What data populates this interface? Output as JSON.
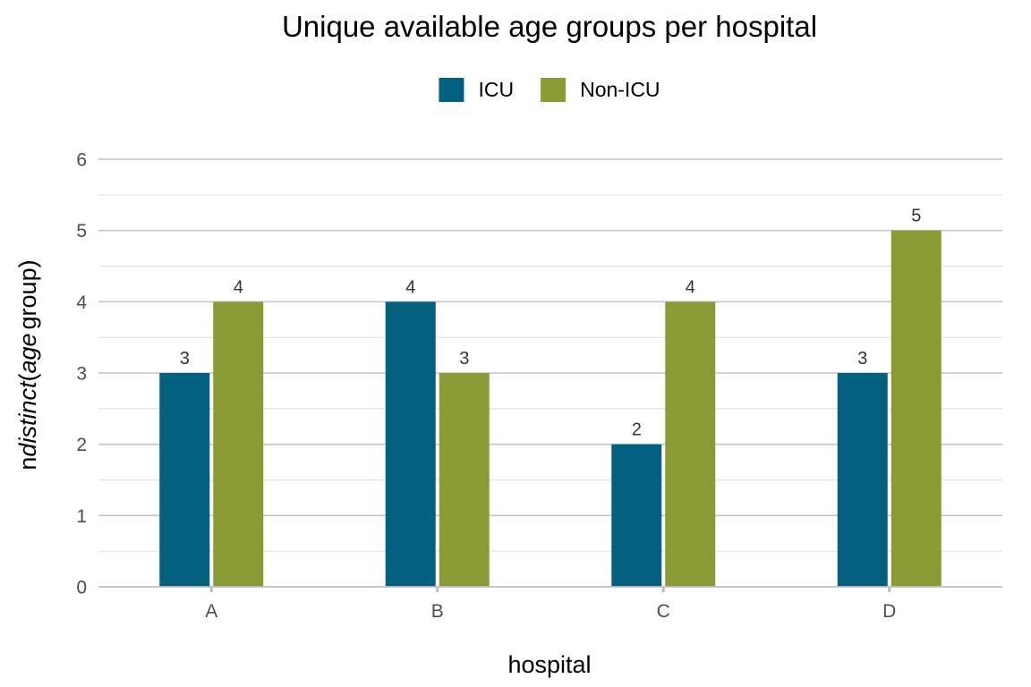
{
  "chart_data": {
    "type": "bar",
    "title": "Unique available age groups per hospital",
    "xlabel": "hospital",
    "ylabel": {
      "prefix": "n",
      "func": "distinct",
      "open": "(",
      "var": "age",
      "rest": "group",
      "close": ")"
    },
    "categories": [
      "A",
      "B",
      "C",
      "D"
    ],
    "series": [
      {
        "name": "ICU",
        "color": "#03607e",
        "values": [
          3,
          4,
          2,
          3
        ]
      },
      {
        "name": "Non-ICU",
        "color": "#8a9a35",
        "values": [
          4,
          3,
          4,
          5
        ]
      }
    ],
    "ylim": [
      0,
      6
    ],
    "yticks": [
      "0",
      "1",
      "2",
      "3",
      "4",
      "5",
      "6"
    ],
    "grid": true,
    "legend": "top-center"
  }
}
